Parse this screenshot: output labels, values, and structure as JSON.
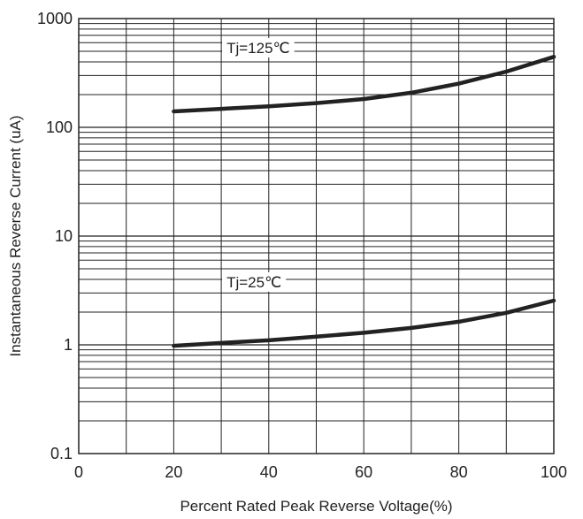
{
  "chart_data": {
    "type": "line",
    "title": "",
    "xlabel": "Percent Rated Peak Reverse Voltage(%)",
    "ylabel": "Instantaneous Reverse Current (uA)",
    "xlim": [
      0,
      100
    ],
    "ylim": [
      0.1,
      1000
    ],
    "y_scale": "log",
    "grid": true,
    "x_ticks": [
      {
        "value": 0,
        "label": "0"
      },
      {
        "value": 20,
        "label": "20"
      },
      {
        "value": 40,
        "label": "40"
      },
      {
        "value": 60,
        "label": "60"
      },
      {
        "value": 80,
        "label": "80"
      },
      {
        "value": 100,
        "label": "100"
      }
    ],
    "y_ticks": [
      {
        "value": 0.1,
        "label": "0.1"
      },
      {
        "value": 1,
        "label": "1"
      },
      {
        "value": 10,
        "label": "10"
      },
      {
        "value": 100,
        "label": "100"
      },
      {
        "value": 1000,
        "label": "1000"
      }
    ],
    "series": [
      {
        "name": "Tj=125℃",
        "x": [
          20,
          30,
          40,
          50,
          60,
          70,
          80,
          90,
          100
        ],
        "y": [
          140,
          148,
          156,
          167,
          182,
          208,
          252,
          325,
          445
        ]
      },
      {
        "name": "Tj=25℃",
        "x": [
          20,
          30,
          40,
          50,
          60,
          70,
          80,
          90,
          100
        ],
        "y": [
          0.98,
          1.04,
          1.1,
          1.19,
          1.29,
          1.43,
          1.63,
          1.97,
          2.55
        ]
      }
    ],
    "annotations": [
      {
        "text": "Tj=125℃",
        "series": 0
      },
      {
        "text": "Tj=25℃",
        "series": 1
      }
    ],
    "line_color": "#222222"
  }
}
